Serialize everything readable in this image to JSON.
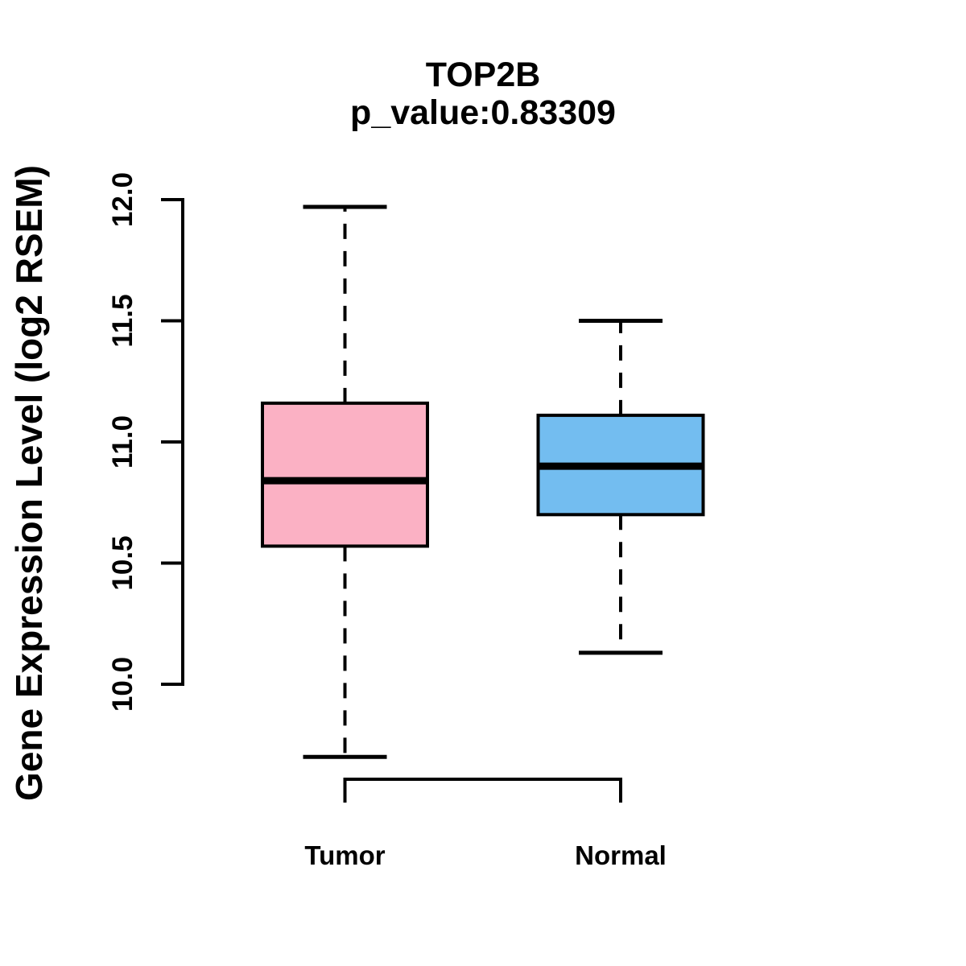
{
  "chart_data": {
    "type": "box",
    "title": "TOP2B",
    "subtitle": "p_value:0.83309",
    "xlabel": "",
    "ylabel": "Gene Expression Level (log2 RSEM)",
    "categories": [
      "Tumor",
      "Normal"
    ],
    "y_ticks": [
      "10.0",
      "10.5",
      "11.0",
      "11.5",
      "12.0"
    ],
    "y_tick_values": [
      10.0,
      10.5,
      11.0,
      11.5,
      12.0
    ],
    "ylim": [
      9.55,
      12.05
    ],
    "grid": false,
    "legend": null,
    "colors": {
      "box_outline": "#000000",
      "text": "#000000"
    },
    "series": [
      {
        "name": "Tumor",
        "fill": "#FBB1C4",
        "whisker_low": 9.7,
        "q1": 10.57,
        "median": 10.84,
        "q3": 11.16,
        "whisker_high": 11.97
      },
      {
        "name": "Normal",
        "fill": "#73BDF0",
        "whisker_low": 10.13,
        "q1": 10.7,
        "median": 10.9,
        "q3": 11.11,
        "whisker_high": 11.5
      }
    ]
  }
}
